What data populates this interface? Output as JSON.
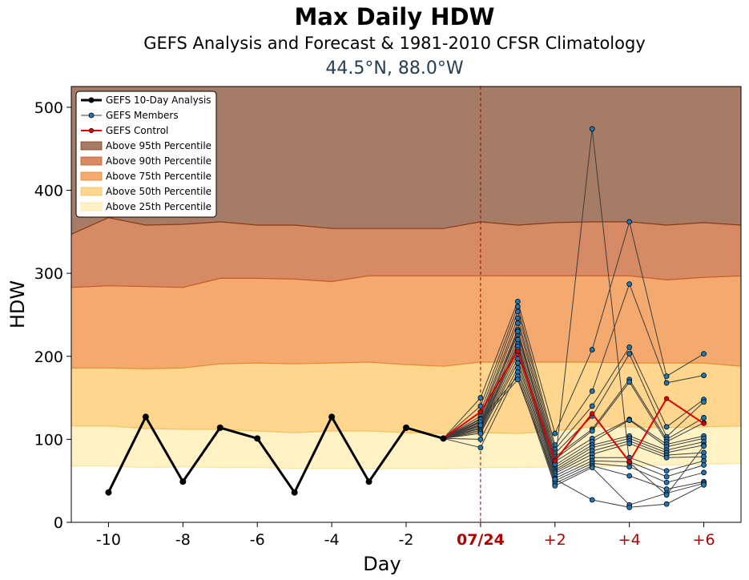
{
  "header": {
    "title": "Max Daily HDW",
    "subtitle": "GEFS Analysis and Forecast & 1981-2010 CFSR Climatology",
    "location": "44.5°N, 88.0°W"
  },
  "chart_data": {
    "type": "line",
    "xlabel": "Day",
    "ylabel": "HDW",
    "xlim": [
      -11,
      7
    ],
    "ylim": [
      0,
      525
    ],
    "yticks": [
      0,
      100,
      200,
      300,
      400,
      500
    ],
    "xticks": [
      {
        "x": -10,
        "label": "-10",
        "style": "normal"
      },
      {
        "x": -8,
        "label": "-8",
        "style": "normal"
      },
      {
        "x": -6,
        "label": "-6",
        "style": "normal"
      },
      {
        "x": -4,
        "label": "-4",
        "style": "normal"
      },
      {
        "x": -2,
        "label": "-2",
        "style": "normal"
      },
      {
        "x": 0,
        "label": "07/24",
        "style": "bold-red"
      },
      {
        "x": 2,
        "label": "+2",
        "style": "red"
      },
      {
        "x": 4,
        "label": "+4",
        "style": "red"
      },
      {
        "x": 6,
        "label": "+6",
        "style": "red"
      }
    ],
    "init_day_marker": 0,
    "legend_position": "top-left",
    "colors": {
      "p95": "#a67c67",
      "p90": "#d68a66",
      "p75": "#f4aa6e",
      "p50": "#fed68e",
      "p25": "#fff3c6",
      "analysis": "#000000",
      "members": "#3d3d3d",
      "member_marker": "#1f77b4",
      "control": "#e00000",
      "vline": "#a00000"
    },
    "climatology_x": [
      -11,
      -10,
      -9,
      -8,
      -7,
      -6,
      -5,
      -4,
      -3,
      -2,
      -1,
      0,
      1,
      2,
      3,
      4,
      5,
      6,
      7
    ],
    "climatology": {
      "p95": [
        347,
        367,
        358,
        359,
        362,
        358,
        358,
        354,
        354,
        354,
        354,
        362,
        358,
        361,
        362,
        362,
        358,
        361,
        358
      ],
      "p90": [
        283,
        285,
        284,
        283,
        294,
        294,
        293,
        290,
        297,
        297,
        297,
        297,
        297,
        297,
        297,
        297,
        292,
        295,
        297
      ],
      "p75": [
        186,
        186,
        185,
        186,
        191,
        192,
        191,
        192,
        193,
        190,
        188,
        193,
        193,
        193,
        193,
        192,
        192,
        192,
        188
      ],
      "p50": [
        116,
        116,
        113,
        112,
        112,
        110,
        108,
        110,
        110,
        108,
        107,
        108,
        107,
        110,
        115,
        115,
        114,
        115,
        116
      ],
      "p25": [
        68,
        68,
        66,
        67,
        66,
        66,
        65,
        65,
        65,
        65,
        65,
        66,
        66,
        67,
        67,
        68,
        69,
        70,
        71
      ]
    },
    "analysis": {
      "name": "GEFS 10-Day Analysis",
      "x": [
        -10,
        -9,
        -8,
        -7,
        -6,
        -5,
        -4,
        -3,
        -2,
        -1
      ],
      "values": [
        36,
        127,
        49,
        114,
        101,
        36,
        127,
        49,
        114,
        101
      ]
    },
    "control": {
      "name": "GEFS Control",
      "x": [
        -1,
        0,
        1,
        2,
        3,
        4,
        5,
        6
      ],
      "values": [
        101,
        133,
        206,
        74,
        131,
        73,
        149,
        119
      ]
    },
    "members": {
      "name": "GEFS Members",
      "x": [
        -1,
        0,
        1,
        2,
        3,
        4,
        5,
        6
      ],
      "values": [
        [
          101,
          150,
          266,
          107,
          208,
          362,
          176,
          203
        ],
        [
          101,
          140,
          260,
          93,
          158,
          287,
          168,
          177
        ],
        [
          101,
          133,
          254,
          88,
          140,
          211,
          115,
          148
        ],
        [
          101,
          128,
          246,
          83,
          128,
          203,
          103,
          145
        ],
        [
          101,
          125,
          240,
          79,
          112,
          172,
          100,
          126
        ],
        [
          101,
          122,
          232,
          76,
          110,
          169,
          97,
          120
        ],
        [
          101,
          120,
          226,
          73,
          101,
          124,
          94,
          104
        ],
        [
          101,
          118,
          220,
          69,
          97,
          123,
          91,
          101
        ],
        [
          101,
          116,
          215,
          66,
          93,
          104,
          87,
          97
        ],
        [
          101,
          114,
          212,
          63,
          90,
          101,
          84,
          93
        ],
        [
          101,
          113,
          208,
          61,
          86,
          98,
          81,
          84
        ],
        [
          101,
          111,
          203,
          59,
          82,
          95,
          78,
          79
        ],
        [
          101,
          109,
          197,
          56,
          78,
          78,
          62,
          74
        ],
        [
          101,
          107,
          192,
          53,
          74,
          73,
          55,
          69
        ],
        [
          101,
          100,
          186,
          50,
          71,
          67,
          48,
          60
        ],
        [
          101,
          90,
          181,
          47,
          68,
          56,
          40,
          49
        ],
        [
          101,
          124,
          176,
          44,
          66,
          21,
          35,
          47
        ],
        [
          101,
          121,
          172,
          52,
          27,
          18,
          22,
          45
        ],
        [
          101,
          117,
          230,
          70,
          474,
          72,
          33,
          92
        ]
      ]
    },
    "legend": [
      {
        "key": "analysis",
        "label": "GEFS 10-Day Analysis"
      },
      {
        "key": "members",
        "label": "GEFS Members"
      },
      {
        "key": "control",
        "label": "GEFS Control"
      },
      {
        "key": "p95",
        "label": "Above 95th Percentile"
      },
      {
        "key": "p90",
        "label": "Above 90th Percentile"
      },
      {
        "key": "p75",
        "label": "Above 75th Percentile"
      },
      {
        "key": "p50",
        "label": "Above 50th Percentile"
      },
      {
        "key": "p25",
        "label": "Above 25th Percentile"
      }
    ]
  }
}
